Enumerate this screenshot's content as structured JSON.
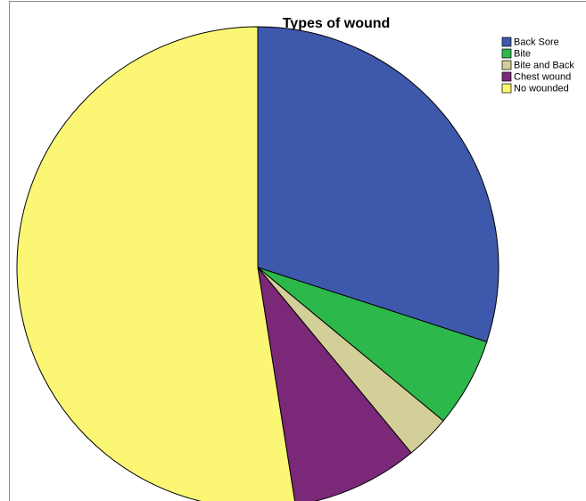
{
  "chart_data": {
    "type": "pie",
    "title": "Types of wound",
    "categories": [
      "Back Sore",
      "Bite",
      "Bite and Back",
      "Chest wound",
      "No wounded"
    ],
    "values": [
      30,
      6,
      3,
      8.5,
      52.5
    ],
    "colors": [
      "#3e58ac",
      "#2db84b",
      "#d3cf98",
      "#7b2878",
      "#fbf774"
    ],
    "legend": "top-right"
  }
}
